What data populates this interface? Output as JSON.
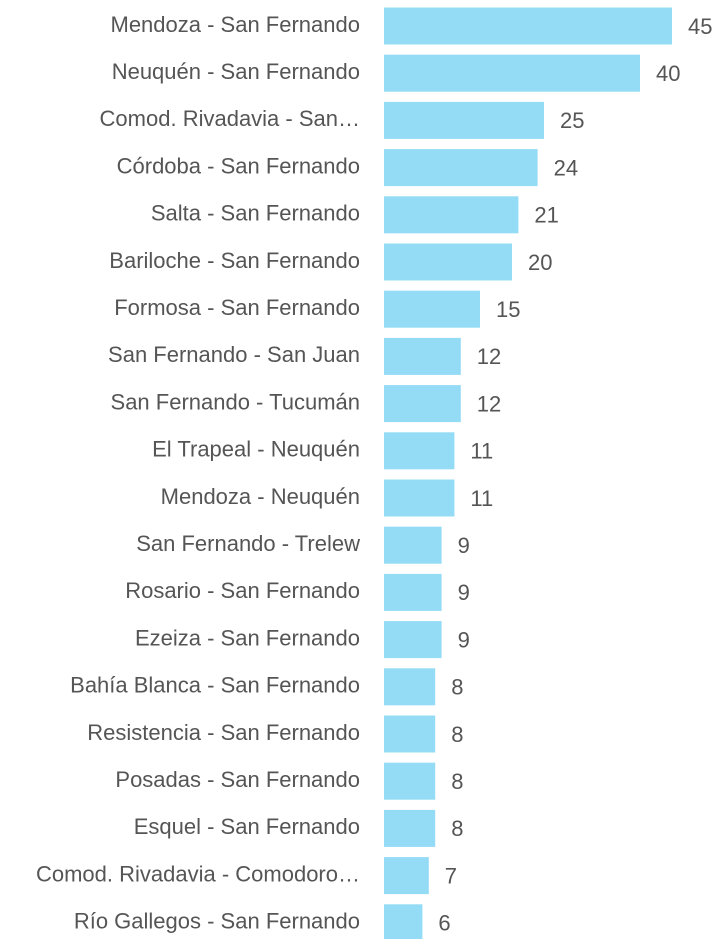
{
  "chart_data": {
    "type": "bar",
    "orientation": "horizontal",
    "categories": [
      "Mendoza - San Fernando",
      "Neuquén - San Fernando",
      "Comod. Rivadavia - San…",
      "Córdoba - San Fernando",
      "Salta - San Fernando",
      "Bariloche - San Fernando",
      "Formosa - San Fernando",
      "San Fernando - San Juan",
      "San Fernando - Tucumán",
      "El Trapeal - Neuquén",
      "Mendoza - Neuquén",
      "San Fernando - Trelew",
      "Rosario - San Fernando",
      "Ezeiza - San Fernando",
      "Bahía Blanca - San Fernando",
      "Resistencia - San Fernando",
      "Posadas - San Fernando",
      "Esquel - San Fernando",
      "Comod. Rivadavia - Comodoro…",
      "Río Gallegos - San Fernando"
    ],
    "values": [
      45,
      40,
      25,
      24,
      21,
      20,
      15,
      12,
      12,
      11,
      11,
      9,
      9,
      9,
      8,
      8,
      8,
      8,
      7,
      6
    ],
    "color": "#94dbf5"
  }
}
